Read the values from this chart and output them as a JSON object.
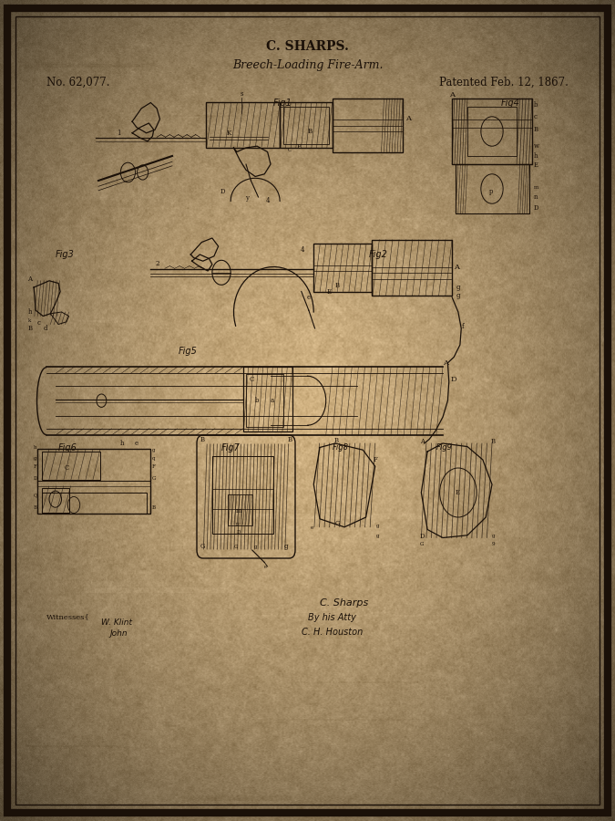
{
  "title1": "C. SHARPS.",
  "title2": "Breech-Loading Fire-Arm.",
  "patent_no": "No. 62,077.",
  "patent_date": "Patented Feb. 12, 1867.",
  "bg_r": 0.82,
  "bg_g": 0.7,
  "bg_b": 0.51,
  "edge_darken": 0.55,
  "border_color": "#1a1008",
  "text_color": "#1a1008",
  "fig_width": 6.75,
  "fig_height": 9.0,
  "dpi": 100,
  "outer_border_lw": 6,
  "inner_border_lw": 1.0,
  "title1_fontsize": 10,
  "title2_fontsize": 9,
  "patent_fontsize": 8.5,
  "line_color": "#1a1008"
}
